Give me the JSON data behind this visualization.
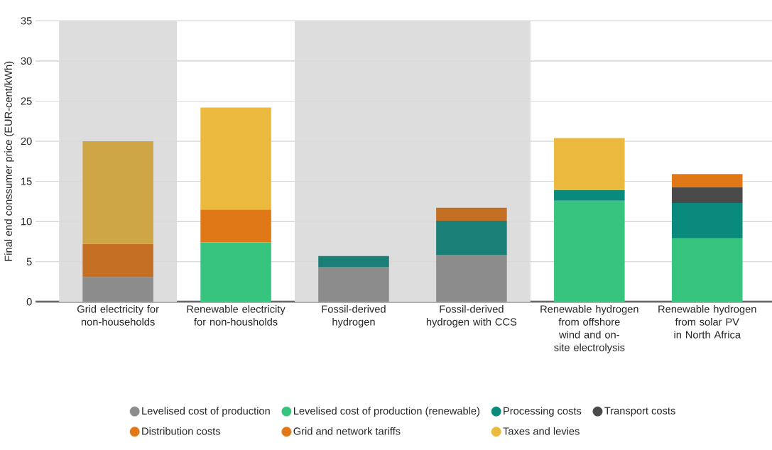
{
  "chart_data": {
    "type": "bar",
    "stacked": true,
    "ylabel": "Final end conssumer price (EUR-cent/kWh)",
    "categories": [
      "Grid electricity for non-households",
      "Renewable electricity for non-housholds",
      "Fossil-derived hydrogen",
      "Fossil-derived hydrogen with CCS",
      "Renewable hydrogen from offshore wind and on-site electrolysis",
      "Renewable hydrogen from solar PV in North Africa"
    ],
    "series": [
      {
        "name": "Levelised cost of production",
        "color": "#8c8c8c",
        "values": [
          3.1,
          null,
          4.3,
          5.8,
          null,
          null
        ]
      },
      {
        "name": "Levelised cost of production (renewable)",
        "color": "#36c47e",
        "values": [
          null,
          7.4,
          null,
          null,
          12.6,
          7.9
        ]
      },
      {
        "name": "Processing costs",
        "color": "#0a8a7d",
        "colors": [
          null,
          null,
          "#1a7f76",
          "#1a7f76",
          "#0a8a7d",
          "#0a8a7d"
        ],
        "values": [
          null,
          null,
          1.4,
          4.3,
          1.3,
          4.4
        ]
      },
      {
        "name": "Transport costs",
        "color": "#4a4a4a",
        "values": [
          null,
          null,
          null,
          null,
          null,
          2.0
        ]
      },
      {
        "name": "Distribution costs",
        "color": "#e07818",
        "colors": [
          null,
          null,
          null,
          "#c46f24",
          null,
          "#e07818"
        ],
        "values": [
          null,
          null,
          null,
          1.6,
          null,
          1.6
        ]
      },
      {
        "name": "Grid and network tariffs",
        "color": "#e07818",
        "colors": [
          "#c46f24",
          "#e07818",
          null,
          null,
          null,
          null
        ],
        "values": [
          4.1,
          4.1,
          null,
          null,
          null,
          null
        ]
      },
      {
        "name": "Taxes and levies",
        "color": "#ecb93f",
        "colors": [
          "#cfa645",
          "#ecb93f",
          null,
          null,
          "#ecb93f",
          null
        ],
        "values": [
          12.8,
          12.7,
          null,
          null,
          6.5,
          null
        ]
      }
    ],
    "bands": [
      {
        "axis": "x",
        "from": "Grid electricity for non-households",
        "to": "Grid electricity for non-households",
        "color": "#dddddd"
      },
      {
        "axis": "x",
        "from": "Fossil-derived hydrogen",
        "to": "Fossil-derived hydrogen with CCS",
        "color": "#dddddd"
      }
    ],
    "ylim": [
      0,
      35
    ],
    "yticks": [
      0,
      5,
      10,
      15,
      20,
      25,
      30,
      35
    ],
    "grid": "y",
    "legend": "bottom"
  }
}
